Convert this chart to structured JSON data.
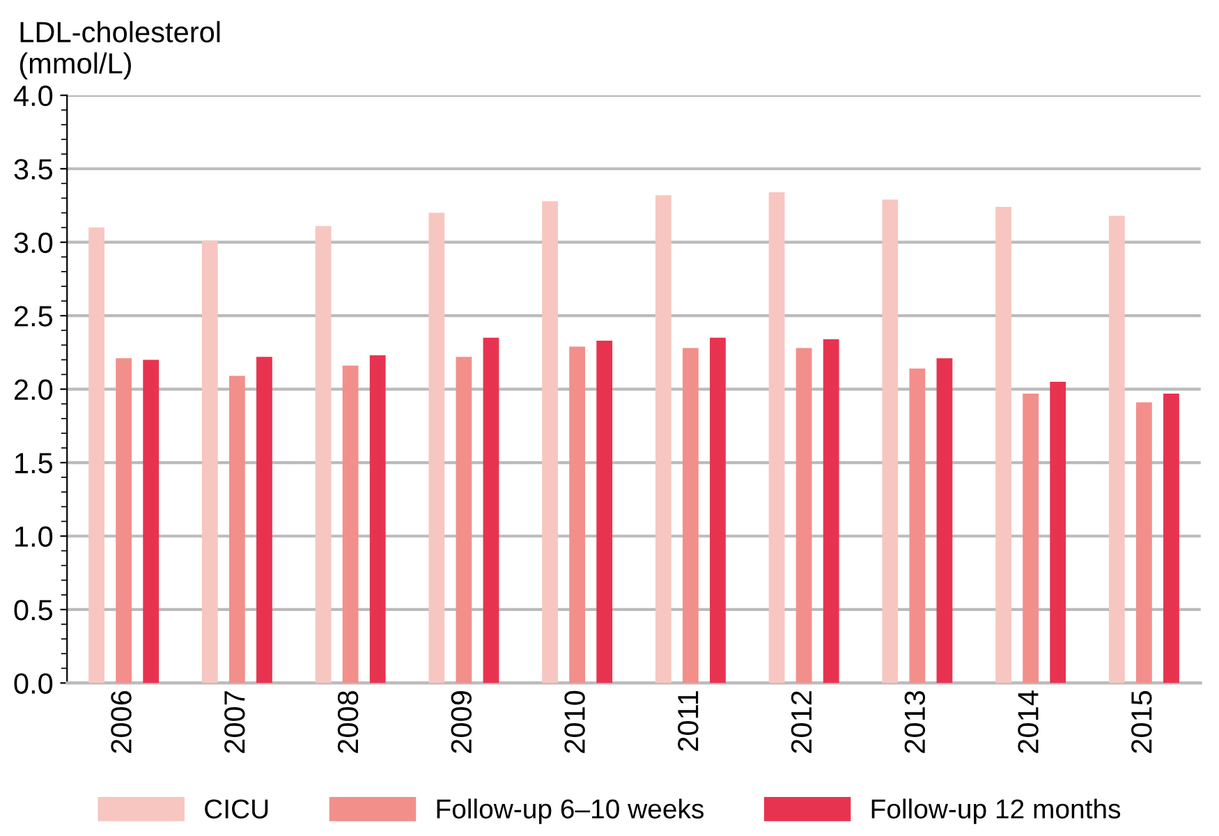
{
  "chart_data": {
    "type": "bar",
    "ylabel": "LDL-cholesterol\n(mmol/L)",
    "categories": [
      "2006",
      "2007",
      "2008",
      "2009",
      "2010",
      "2011",
      "2012",
      "2013",
      "2014",
      "2015"
    ],
    "series": [
      {
        "name": "CICU",
        "color": "#f7c6c0",
        "values": [
          3.1,
          3.01,
          3.11,
          3.2,
          3.28,
          3.32,
          3.34,
          3.29,
          3.24,
          3.18
        ]
      },
      {
        "name": "Follow-up 6–10 weeks",
        "color": "#f28f8b",
        "values": [
          2.21,
          2.09,
          2.16,
          2.22,
          2.29,
          2.28,
          2.28,
          2.14,
          1.97,
          1.91
        ]
      },
      {
        "name": "Follow-up 12 months",
        "color": "#e83350",
        "values": [
          2.2,
          2.22,
          2.23,
          2.35,
          2.33,
          2.35,
          2.34,
          2.21,
          2.05,
          1.97
        ]
      }
    ],
    "ylim": [
      0,
      4
    ],
    "yticks": [
      {
        "value": 0,
        "label": "0.0"
      },
      {
        "value": 0.5,
        "label": "0.5"
      },
      {
        "value": 1,
        "label": "1.0"
      },
      {
        "value": 1.5,
        "label": "1.5"
      },
      {
        "value": 2,
        "label": "2.0"
      },
      {
        "value": 2.5,
        "label": "2.5"
      },
      {
        "value": 3,
        "label": "3.0"
      },
      {
        "value": 3.5,
        "label": "3.5"
      },
      {
        "value": 4,
        "label": "4.0"
      }
    ],
    "grid": "y",
    "legend": "bottom"
  }
}
